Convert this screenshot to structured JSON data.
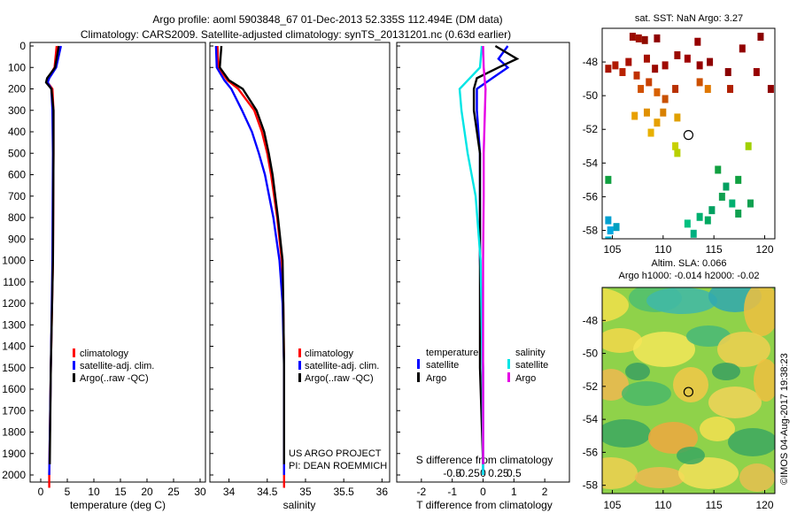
{
  "header": {
    "line1": "Argo profile: aoml 5903848_67 01-Dec-2013 52.335S 112.494E (DM data)",
    "line2": "Climatology: CARS2009. Satellite-adjusted climatology: synTS_20131201.nc (0.63d earlier)"
  },
  "colors": {
    "clim": "#ff0000",
    "sat": "#0000ff",
    "argo": "#000000",
    "sal_sat": "#00e5e5",
    "sal_argo": "#e500e5"
  },
  "depth_ticks": [
    "0",
    "100",
    "200",
    "300",
    "400",
    "500",
    "600",
    "700",
    "800",
    "900",
    "1000",
    "1100",
    "1200",
    "1300",
    "1400",
    "1500",
    "1600",
    "1700",
    "1800",
    "1900",
    "2000"
  ],
  "chart_data": [
    {
      "type": "line",
      "id": "temperature",
      "xlabel": "temperature (deg C)",
      "ylabel": "depth",
      "xlim": [
        -2,
        31
      ],
      "ylim": [
        2060,
        0
      ],
      "xticks": [
        "0",
        "5",
        "10",
        "15",
        "20",
        "25",
        "30"
      ],
      "series": [
        {
          "name": "climatology",
          "depth": [
            0,
            100,
            150,
            170,
            200,
            300,
            500,
            1000,
            1500,
            2000,
            2060
          ],
          "values": [
            3.0,
            2.6,
            1.4,
            1.3,
            2.2,
            2.4,
            2.4,
            2.3,
            1.9,
            1.6,
            1.6
          ]
        },
        {
          "name": "satellite-adj. clim.",
          "depth": [
            0,
            100,
            150,
            170,
            200,
            300,
            500,
            1000,
            1500,
            2000
          ],
          "values": [
            3.8,
            2.9,
            1.6,
            1.3,
            2.0,
            2.2,
            2.3,
            2.2,
            1.9,
            1.6
          ]
        },
        {
          "name": "Argo(..raw -QC)",
          "depth": [
            0,
            100,
            150,
            170,
            200,
            300,
            500,
            1000,
            1500,
            1950
          ],
          "values": [
            3.4,
            2.7,
            1.2,
            1.0,
            2.0,
            2.4,
            2.4,
            2.3,
            1.9,
            1.7
          ]
        }
      ],
      "legend": [
        "climatology",
        "satellite-adj. clim.",
        "Argo(..raw -QC)"
      ]
    },
    {
      "type": "line",
      "id": "salinity",
      "xlabel": "salinity",
      "ylabel": "depth",
      "xlim": [
        33.75,
        36.1
      ],
      "ylim": [
        2060,
        0
      ],
      "xticks": [
        "34",
        "34.5",
        "35",
        "35.5",
        "36"
      ],
      "series": [
        {
          "name": "climatology",
          "depth": [
            0,
            100,
            160,
            200,
            300,
            400,
            500,
            600,
            800,
            1000,
            1200,
            1500,
            2000,
            2060
          ],
          "values": [
            33.85,
            33.86,
            33.98,
            34.12,
            34.33,
            34.43,
            34.5,
            34.55,
            34.63,
            34.69,
            34.71,
            34.72,
            34.72,
            34.72
          ]
        },
        {
          "name": "satellite-adj. clim.",
          "depth": [
            0,
            100,
            160,
            200,
            300,
            400,
            500,
            600,
            800,
            1000,
            1200,
            1500,
            2000
          ],
          "values": [
            33.83,
            33.84,
            33.94,
            34.03,
            34.17,
            34.3,
            34.39,
            34.47,
            34.58,
            34.66,
            34.7,
            34.72,
            34.72
          ]
        },
        {
          "name": "Argo(..raw -QC)",
          "depth": [
            0,
            100,
            160,
            200,
            300,
            400,
            500,
            600,
            800,
            1000,
            1200,
            1500,
            1950
          ],
          "values": [
            33.9,
            33.88,
            34.0,
            34.18,
            34.36,
            34.46,
            34.52,
            34.57,
            34.64,
            34.7,
            34.71,
            34.72,
            34.72
          ]
        }
      ],
      "legend": [
        "climatology",
        "satellite-adj. clim.",
        "Argo(..raw -QC)"
      ],
      "annotation": [
        "US ARGO PROJECT",
        "PI: DEAN ROEMMICH"
      ]
    },
    {
      "type": "line",
      "id": "difference",
      "xlabel": "T difference from climatology",
      "xlabel2": "S difference from climatology",
      "xlim": [
        -2.8,
        2.8
      ],
      "ylim": [
        2060,
        0
      ],
      "xticks": [
        "-2",
        "-1",
        "0",
        "1",
        "2"
      ],
      "xticks2": [
        "-0.5",
        "-0.25",
        "0",
        "0.25",
        "0.5"
      ],
      "series": [
        {
          "name": "temperature satellite",
          "depth": [
            0,
            60,
            100,
            150,
            200,
            300,
            500,
            1000,
            1500,
            2000
          ],
          "values": [
            0.8,
            0.5,
            0.8,
            0.3,
            -0.2,
            -0.2,
            -0.1,
            -0.1,
            0.0,
            0.0
          ]
        },
        {
          "name": "temperature Argo",
          "depth": [
            0,
            60,
            100,
            150,
            200,
            300,
            500,
            1000,
            1500,
            1950
          ],
          "values": [
            0.4,
            1.1,
            0.5,
            -0.2,
            -0.3,
            -0.3,
            -0.1,
            -0.1,
            -0.1,
            0.0
          ]
        },
        {
          "name": "salinity satellite",
          "depth": [
            0,
            100,
            200,
            300,
            500,
            700,
            1000,
            1500,
            2000
          ],
          "values": [
            -0.02,
            -0.05,
            -0.38,
            -0.35,
            -0.25,
            -0.12,
            -0.04,
            -0.01,
            0.0
          ]
        },
        {
          "name": "salinity Argo",
          "depth": [
            0,
            100,
            200,
            300,
            500,
            700,
            1000,
            1500,
            1950
          ],
          "values": [
            0.0,
            0.01,
            0.04,
            0.03,
            0.01,
            0.01,
            0.0,
            0.0,
            0.0
          ]
        }
      ],
      "legend_t": {
        "title": "temperature",
        "items": [
          "satellite",
          "Argo"
        ]
      },
      "legend_s": {
        "title": "salinity",
        "items": [
          "satellite",
          "Argo"
        ]
      }
    },
    {
      "type": "heatmap",
      "id": "sst_map",
      "title": "sat. SST: NaN Argo: 3.27",
      "xlim": [
        104,
        121
      ],
      "ylim": [
        -58.5,
        -46
      ],
      "xticks": [
        "105",
        "110",
        "115",
        "120"
      ],
      "yticks": [
        "-48",
        "-50",
        "-52",
        "-54",
        "-56",
        "-58"
      ],
      "marker": {
        "lon": 112.494,
        "lat": -52.335
      }
    },
    {
      "type": "heatmap",
      "id": "sla_map",
      "title1": "Altim. SLA: 0.066",
      "title2": "Argo h1000: -0.014 h2000: -0.02",
      "xlim": [
        104,
        121
      ],
      "ylim": [
        -58.5,
        -46
      ],
      "xticks": [
        "105",
        "110",
        "115",
        "120"
      ],
      "yticks": [
        "-48",
        "-50",
        "-52",
        "-54",
        "-56",
        "-58"
      ],
      "marker": {
        "lon": 112.494,
        "lat": -52.335
      }
    }
  ],
  "footer": {
    "credit": "©IMOS 04-Aug-2017 19:38:23"
  }
}
